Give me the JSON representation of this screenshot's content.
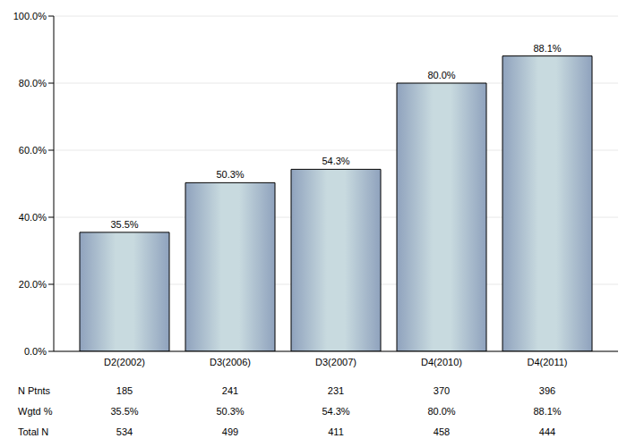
{
  "chart_data": {
    "type": "bar",
    "categories": [
      "D2(2002)",
      "D3(2006)",
      "D3(2007)",
      "D4(2010)",
      "D4(2011)"
    ],
    "values": [
      35.5,
      50.3,
      54.3,
      80.0,
      88.1
    ],
    "value_labels": [
      "35.5%",
      "50.3%",
      "54.3%",
      "80.0%",
      "88.1%"
    ],
    "data_labels": true,
    "color": "#8fa2bd",
    "ylim": [
      0,
      100
    ],
    "yticks": [
      {
        "value": 0,
        "label": "0.0%"
      },
      {
        "value": 20,
        "label": "20.0%"
      },
      {
        "value": 40,
        "label": "40.0%"
      },
      {
        "value": 60,
        "label": "60.0%"
      },
      {
        "value": 80,
        "label": "80.0%"
      },
      {
        "value": 100,
        "label": "100.0%"
      }
    ],
    "grid": true
  },
  "table": {
    "rows": [
      {
        "label": "N Ptnts",
        "values": [
          "185",
          "241",
          "231",
          "370",
          "396"
        ]
      },
      {
        "label": "Wgtd %",
        "values": [
          "35.5%",
          "50.3%",
          "54.3%",
          "80.0%",
          "88.1%"
        ]
      },
      {
        "label": "Total N",
        "values": [
          "534",
          "499",
          "411",
          "458",
          "444"
        ]
      }
    ]
  }
}
